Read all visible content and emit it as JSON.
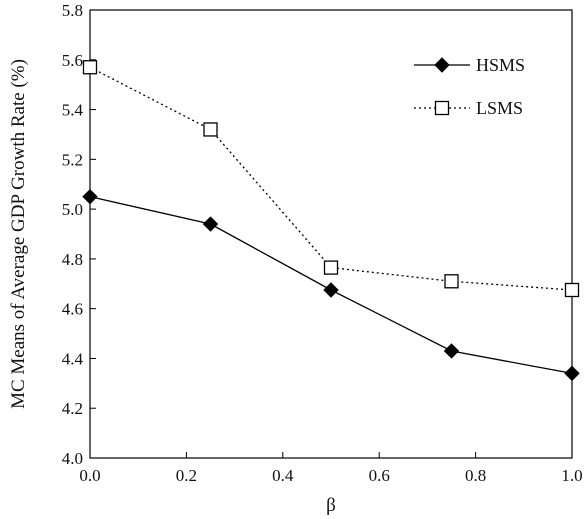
{
  "chart_data": {
    "type": "line",
    "xlabel": "β",
    "ylabel": "MC Means of Average GDP Growth Rate (%)",
    "xlim": [
      0.0,
      1.0
    ],
    "ylim": [
      4.0,
      5.8
    ],
    "x_ticks": [
      "0.0",
      "0.2",
      "0.4",
      "0.6",
      "0.8",
      "1.0"
    ],
    "y_ticks": [
      "4.0",
      "4.2",
      "4.4",
      "4.6",
      "4.8",
      "5.0",
      "5.2",
      "5.4",
      "5.6",
      "5.8"
    ],
    "grid": false,
    "legend_position": "top-right",
    "x": [
      0.0,
      0.25,
      0.5,
      0.75,
      1.0
    ],
    "series": [
      {
        "name": "HSMS",
        "marker": "filled-diamond",
        "line_style": "solid",
        "color": "#000000",
        "values": [
          5.05,
          4.94,
          4.675,
          4.43,
          4.34
        ]
      },
      {
        "name": "LSMS",
        "marker": "open-square",
        "line_style": "dotted",
        "color": "#000000",
        "values": [
          5.57,
          5.32,
          4.765,
          4.71,
          4.675
        ]
      }
    ]
  }
}
